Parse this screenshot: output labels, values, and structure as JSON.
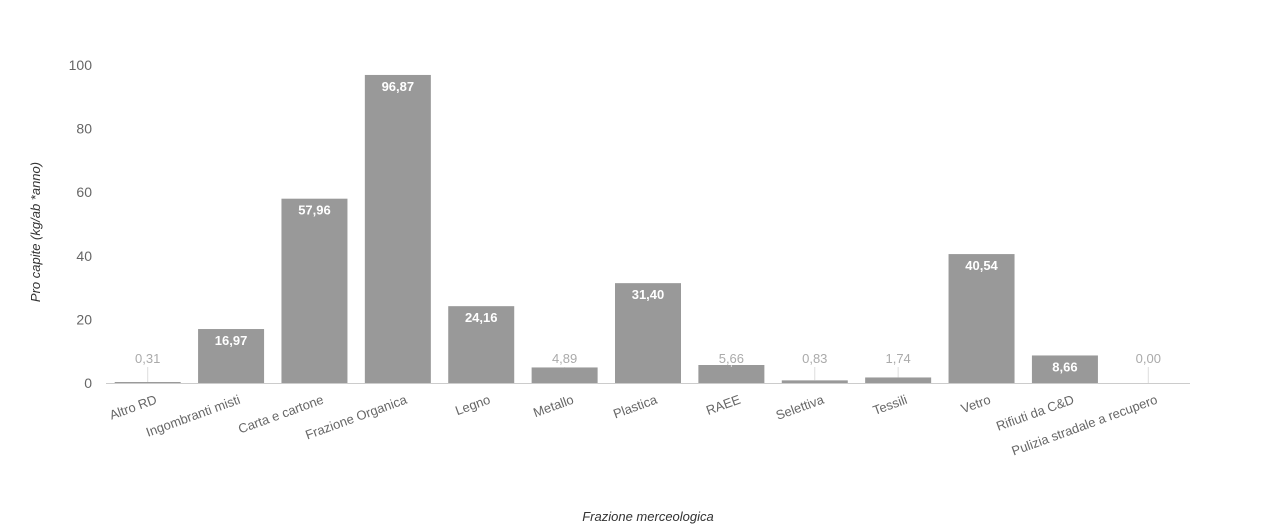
{
  "chart_data": {
    "type": "bar",
    "categories": [
      "Altro RD",
      "Ingombranti misti",
      "Carta e cartone",
      "Frazione Organica",
      "Legno",
      "Metallo",
      "Plastica",
      "RAEE",
      "Selettiva",
      "Tessili",
      "Vetro",
      "Rifiuti da C&D",
      "Pulizia stradale a recupero"
    ],
    "values": [
      0.31,
      16.97,
      57.96,
      96.87,
      24.16,
      4.89,
      31.4,
      5.66,
      0.83,
      1.74,
      40.54,
      8.66,
      0.0
    ],
    "data_labels": [
      "0,31",
      "16,97",
      "57,96",
      "96,87",
      "24,16",
      "4,89",
      "31,40",
      "5,66",
      "0,83",
      "1,74",
      "40,54",
      "8,66",
      "0,00"
    ],
    "yticks": [
      "0",
      "20",
      "40",
      "60",
      "80",
      "100"
    ],
    "ylim": [
      0,
      100
    ],
    "xlabel": "Frazione merceologica",
    "ylabel": "Pro capite (kg/ab *anno)",
    "bar_color": "#999999",
    "grid": false,
    "legend": false
  }
}
